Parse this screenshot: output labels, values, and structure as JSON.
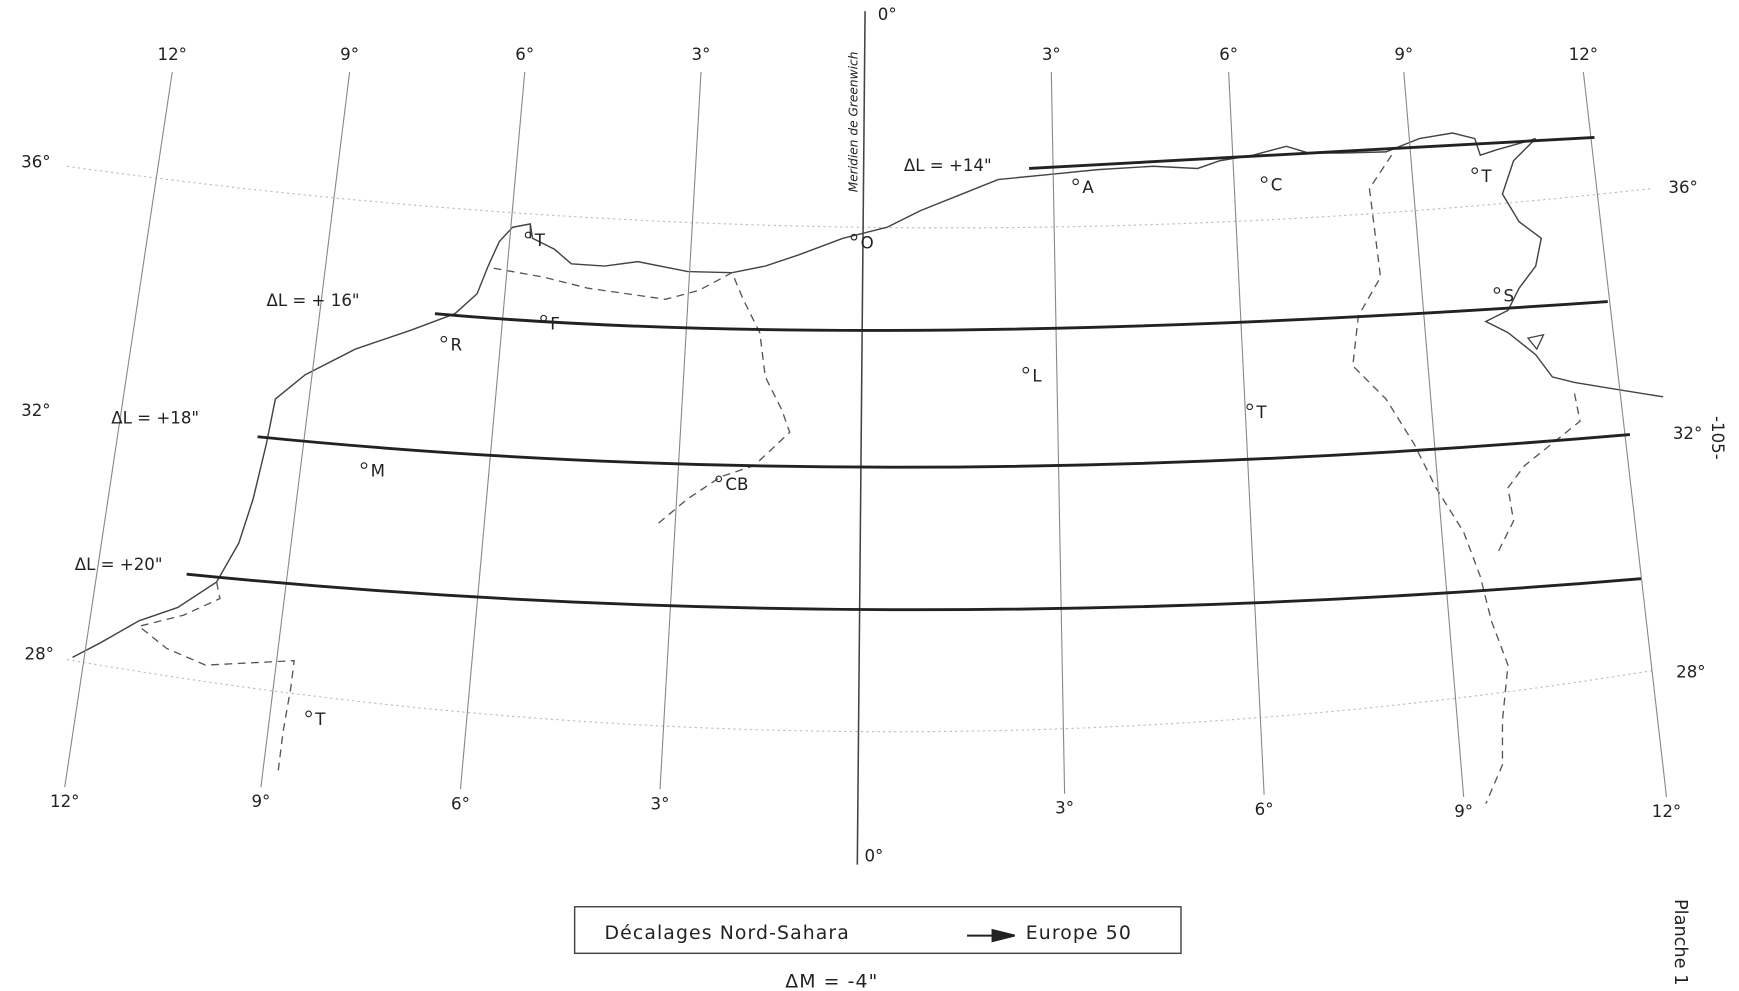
{
  "top_longitude_labels": [
    "12°",
    "9°",
    "6°",
    "3°",
    "0°",
    "3°",
    "6°",
    "9°",
    "12°"
  ],
  "bottom_longitude_labels": [
    "12°",
    "9°",
    "6°",
    "3°",
    "0°",
    "3°",
    "6°",
    "9°",
    "12°"
  ],
  "left_latitude_labels": [
    "36°",
    "32°",
    "28°"
  ],
  "right_latitude_labels": [
    "36°",
    "32°",
    "28°"
  ],
  "meridian_label": "Meridien de Greenwich",
  "delta_lines": [
    {
      "label": "ΔL = +14\""
    },
    {
      "label": "ΔL = + 16\""
    },
    {
      "label": "ΔL = +18\""
    },
    {
      "label": "ΔL = +20\""
    }
  ],
  "places": [
    "A",
    "C",
    "T",
    "O",
    "T",
    "F",
    "R",
    "S",
    "L",
    "T",
    "M",
    "CB",
    "T"
  ],
  "legend": {
    "from": "Décalages Nord-Sahara",
    "to": "Europe 50",
    "delta_m": "ΔM = -4\""
  },
  "page_number": "-105-",
  "plate": "Planche 1"
}
